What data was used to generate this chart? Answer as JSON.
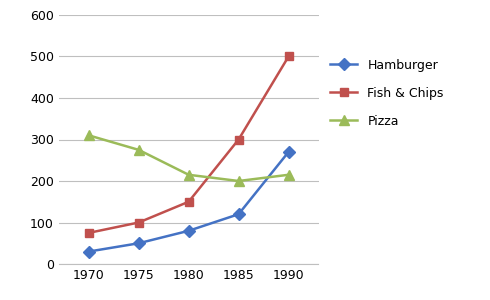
{
  "years": [
    1970,
    1975,
    1980,
    1985,
    1990
  ],
  "hamburger": [
    30,
    50,
    80,
    120,
    270
  ],
  "fish_chips": [
    75,
    100,
    150,
    300,
    500
  ],
  "pizza": [
    310,
    275,
    215,
    200,
    215
  ],
  "colors": {
    "hamburger": "#4472C4",
    "fish_chips": "#C0504D",
    "pizza": "#9BBB59"
  },
  "markers": {
    "hamburger": "D",
    "fish_chips": "s",
    "pizza": "^"
  },
  "legend_labels": [
    "Hamburger",
    "Fish & Chips",
    "Pizza"
  ],
  "ylim": [
    0,
    600
  ],
  "yticks": [
    0,
    100,
    200,
    300,
    400,
    500,
    600
  ],
  "background_color": "#ffffff",
  "grid_color": "#bfbfbf"
}
